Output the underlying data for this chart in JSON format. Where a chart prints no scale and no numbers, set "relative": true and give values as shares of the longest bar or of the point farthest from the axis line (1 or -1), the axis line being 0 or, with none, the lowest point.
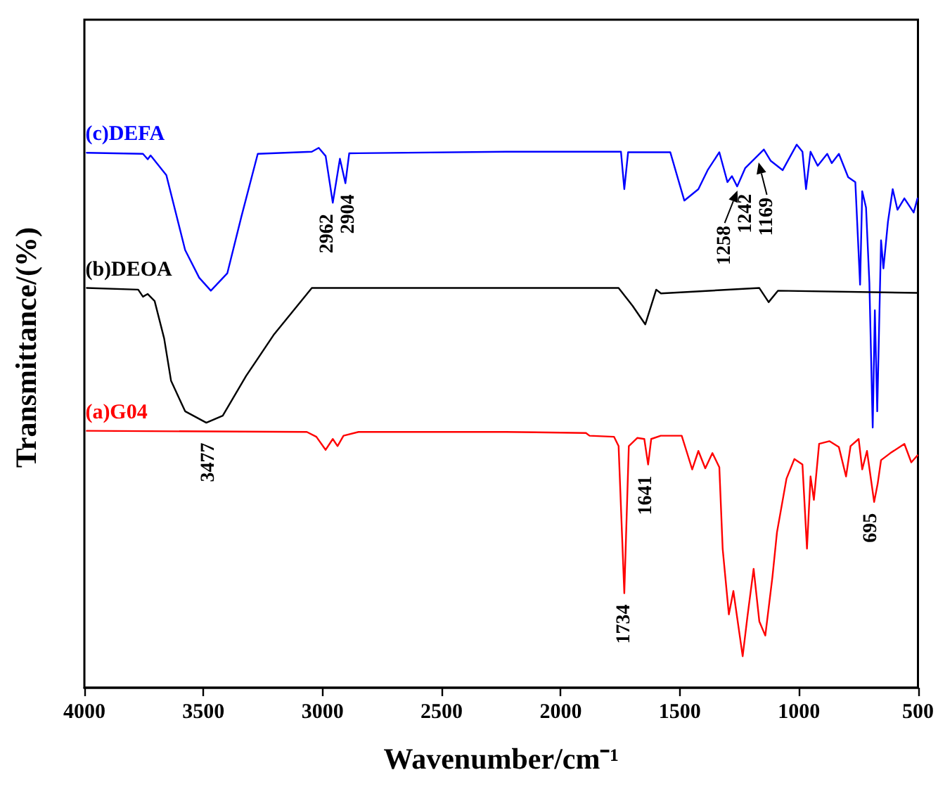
{
  "chart_data": {
    "type": "line",
    "xlabel": "Wavenumber/cm⁻¹",
    "ylabel": "Transmittance/(%)",
    "relative": true,
    "marker": "none",
    "line_style": "solid",
    "xlim": [
      4000,
      500
    ],
    "xticks": [
      4000,
      3500,
      3000,
      2500,
      2000,
      1500,
      1000,
      500
    ],
    "annotations": [
      {
        "text": "2962",
        "x": 2962,
        "y": 0.893
      },
      {
        "text": "2904",
        "x": 2904,
        "y": 0.929
      },
      {
        "text": "1258",
        "x": 1258,
        "y": 0.923
      },
      {
        "text": "1242",
        "x": 1242,
        "y": 0.93
      },
      {
        "text": "1169",
        "x": 1169,
        "y": 0.975
      },
      {
        "text": "3477",
        "x": 3477,
        "y": 0.488
      },
      {
        "text": "1641",
        "x": 1641,
        "y": 0.411
      },
      {
        "text": "1734",
        "x": 1734,
        "y": 0.174
      },
      {
        "text": "695",
        "x": 695,
        "y": 0.342
      }
    ],
    "series": [
      {
        "name": "(c)DEFA",
        "color": "#0000ff",
        "x": [
          3990,
          3754,
          3734,
          3722,
          3656,
          3577,
          3518,
          3469,
          3400,
          3341,
          3272,
          3045,
          3016,
          2987,
          2957,
          2927,
          2904,
          2888,
          2229,
          1747,
          1733,
          1717,
          1540,
          1481,
          1422,
          1383,
          1334,
          1300,
          1281,
          1259,
          1225,
          1147,
          1118,
          1068,
          1009,
          985,
          970,
          951,
          921,
          881,
          862,
          832,
          793,
          763,
          743,
          734,
          718,
          704,
          690,
          681,
          671,
          655,
          645,
          626,
          606,
          586,
          557,
          518,
          502
        ],
        "values": [
          0.985,
          0.983,
          0.973,
          0.98,
          0.944,
          0.806,
          0.755,
          0.731,
          0.763,
          0.867,
          0.983,
          0.987,
          0.994,
          0.979,
          0.893,
          0.974,
          0.929,
          0.984,
          0.987,
          0.987,
          0.918,
          0.986,
          0.986,
          0.897,
          0.918,
          0.953,
          0.986,
          0.931,
          0.942,
          0.923,
          0.957,
          0.991,
          0.97,
          0.953,
          1.0,
          0.987,
          0.918,
          0.987,
          0.961,
          0.983,
          0.966,
          0.983,
          0.94,
          0.931,
          0.742,
          0.914,
          0.884,
          0.746,
          0.479,
          0.695,
          0.509,
          0.824,
          0.772,
          0.858,
          0.918,
          0.88,
          0.901,
          0.875,
          0.901
        ]
      },
      {
        "name": "(b)DEOA",
        "color": "#000000",
        "x": [
          3990,
          3774,
          3754,
          3734,
          3705,
          3665,
          3636,
          3577,
          3488,
          3419,
          3321,
          3203,
          3045,
          2229,
          1757,
          1698,
          1645,
          1599,
          1579,
          1166,
          1127,
          1088,
          502
        ],
        "values": [
          0.736,
          0.733,
          0.72,
          0.725,
          0.712,
          0.643,
          0.565,
          0.509,
          0.488,
          0.501,
          0.574,
          0.651,
          0.736,
          0.736,
          0.736,
          0.703,
          0.669,
          0.733,
          0.726,
          0.736,
          0.71,
          0.731,
          0.727
        ]
      },
      {
        "name": "(a)G04",
        "color": "#ff0000",
        "x": [
          3990,
          3066,
          3026,
          2987,
          2957,
          2937,
          2912,
          2849,
          2229,
          1894,
          1879,
          1776,
          1757,
          1733,
          1714,
          1678,
          1649,
          1633,
          1620,
          1580,
          1492,
          1472,
          1448,
          1422,
          1393,
          1363,
          1334,
          1320,
          1294,
          1275,
          1236,
          1216,
          1190,
          1166,
          1141,
          1111,
          1092,
          1052,
          1019,
          985,
          966,
          951,
          937,
          915,
          872,
          832,
          802,
          783,
          749,
          734,
          714,
          684,
          669,
          655,
          616,
          557,
          528,
          502
        ],
        "values": [
          0.473,
          0.471,
          0.462,
          0.438,
          0.458,
          0.445,
          0.464,
          0.471,
          0.471,
          0.469,
          0.464,
          0.462,
          0.445,
          0.174,
          0.445,
          0.46,
          0.458,
          0.411,
          0.458,
          0.464,
          0.464,
          0.436,
          0.402,
          0.436,
          0.404,
          0.432,
          0.406,
          0.256,
          0.135,
          0.178,
          0.058,
          0.131,
          0.219,
          0.122,
          0.096,
          0.204,
          0.286,
          0.385,
          0.421,
          0.411,
          0.256,
          0.389,
          0.346,
          0.449,
          0.454,
          0.443,
          0.389,
          0.445,
          0.458,
          0.402,
          0.436,
          0.342,
          0.376,
          0.419,
          0.432,
          0.449,
          0.415,
          0.428
        ]
      }
    ]
  }
}
